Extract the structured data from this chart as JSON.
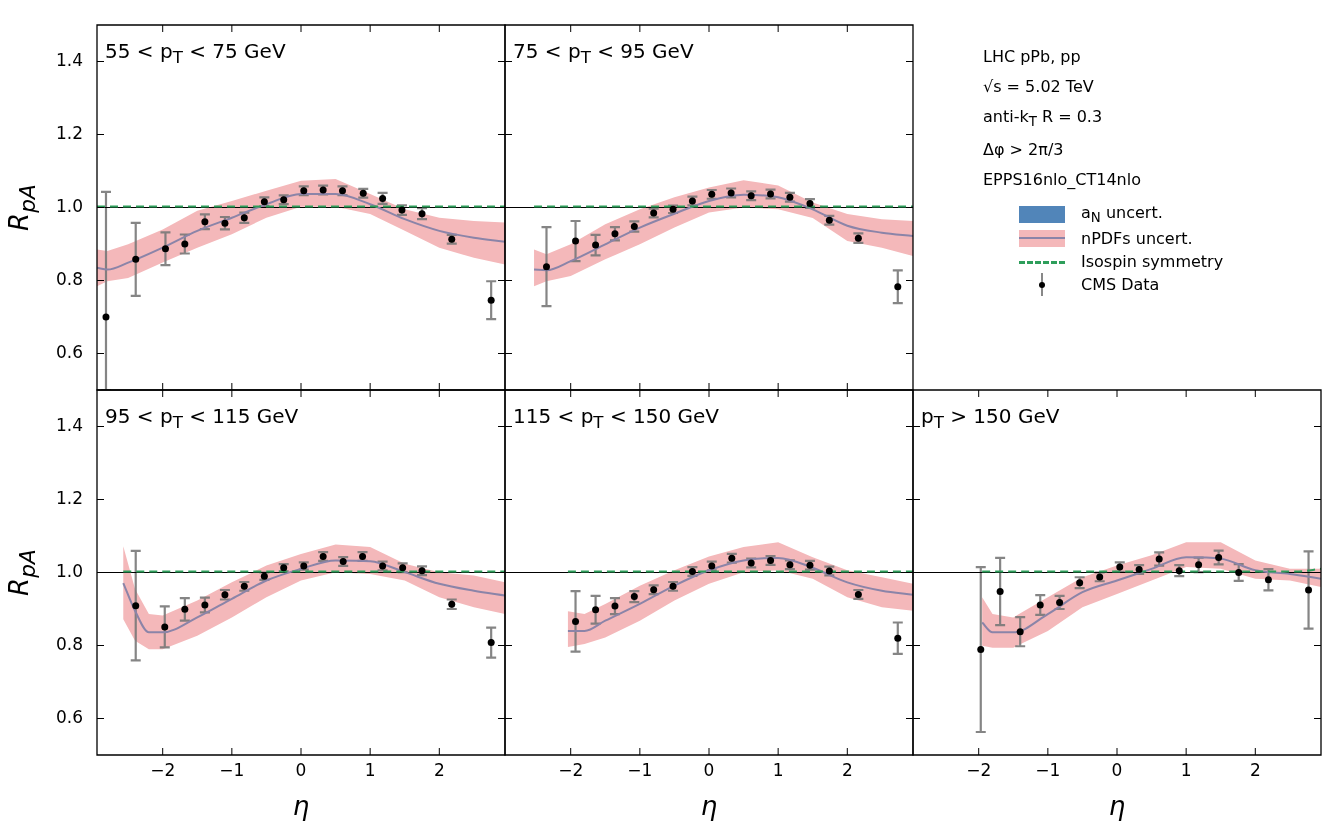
{
  "chart_data": [
    {
      "type": "line",
      "title": "55 < p$_{T}$ < 75 GeV",
      "ylabel": "R$_{pA}$",
      "xlim": [
        -2.95,
        2.95
      ],
      "ylim": [
        0.5,
        1.5
      ],
      "xticks": [
        -2,
        -1,
        0,
        1,
        2
      ],
      "yticks": [
        0.6,
        0.8,
        {
          "value": 1,
          "label": "1.0"
        },
        1.2,
        1.4
      ],
      "tick_labels": "y",
      "ref_lines": [
        {
          "axis": "y",
          "value": 1,
          "color": "#000000"
        }
      ],
      "series": [
        {
          "type": "line",
          "color": "#8b84a8",
          "x": [
            -2.95,
            -2.8,
            -2.5,
            -2,
            -1.5,
            -1,
            -0.5,
            0,
            0.5,
            1,
            1.5,
            2,
            2.5,
            2.95
          ],
          "values": [
            0.835,
            0.83,
            0.849,
            0.89,
            0.936,
            0.972,
            1.009,
            1.037,
            1.037,
            1.009,
            0.968,
            0.936,
            0.917,
            0.906
          ],
          "lower": [
            0.784,
            0.798,
            0.807,
            0.849,
            0.89,
            0.927,
            0.972,
            1.002,
            1.002,
            0.982,
            0.936,
            0.89,
            0.862,
            0.844
          ],
          "upper": [
            0.885,
            0.881,
            0.899,
            0.94,
            0.991,
            1.018,
            1.046,
            1.073,
            1.078,
            1.037,
            0.995,
            0.972,
            0.963,
            0.959
          ]
        },
        {
          "type": "line",
          "color": "#2e9e5b",
          "line_style": "dashed",
          "x": [
            -2.95,
            2.95
          ],
          "values": [
            1.003,
            1.003
          ]
        },
        {
          "type": "scatter",
          "color": "#000000",
          "marker": "circle",
          "x": [
            -2.82,
            -2.39,
            -1.96,
            -1.68,
            -1.39,
            -1.1,
            -0.82,
            -0.53,
            -0.25,
            0.04,
            0.32,
            0.6,
            0.9,
            1.18,
            1.46,
            1.75,
            2.18,
            2.75
          ],
          "values": [
            0.7,
            0.858,
            0.887,
            0.9,
            0.961,
            0.957,
            0.972,
            1.016,
            1.021,
            1.046,
            1.048,
            1.046,
            1.039,
            1.025,
            0.993,
            0.983,
            0.913,
            0.746
          ],
          "errors": [
            [
              0.5,
              1.043
            ],
            0.1,
            0.045,
            0.026,
            0.02,
            0.017,
            0.014,
            0.012,
            0.012,
            0.012,
            0.012,
            0.012,
            0.012,
            0.015,
            0.013,
            0.015,
            0.012,
            0.052
          ]
        }
      ]
    },
    {
      "type": "line",
      "title": "75 < p$_{T}$ < 95 GeV",
      "xlim": [
        -2.95,
        2.95
      ],
      "ylim": [
        0.5,
        1.5
      ],
      "xticks": [
        -2,
        -1,
        0,
        1,
        2
      ],
      "yticks": [
        0.6,
        0.8,
        1,
        1.2,
        1.4
      ],
      "tick_labels": false,
      "ref_lines": [
        {
          "axis": "y",
          "value": 1,
          "color": "#000000"
        }
      ],
      "legend": "right",
      "annotations": [
        "LHC  pPb, pp",
        "√s = 5.02 TeV",
        "anti-k$_{T}$ R = 0.3",
        "Δφ > 2π/3",
        "EPPS16nlo_CT14nlo"
      ],
      "series": [
        {
          "name": "a$_{N}$ uncert.",
          "type": "area",
          "color": "#5185b9"
        },
        {
          "name": "nPDFs uncert.",
          "type": "line",
          "color": "#8b84a8",
          "x": [
            -2.53,
            -2.35,
            -2,
            -1.5,
            -1,
            -0.5,
            0,
            0.5,
            1,
            1.5,
            2,
            2.5,
            2.95
          ],
          "values": [
            0.83,
            0.828,
            0.853,
            0.899,
            0.945,
            0.983,
            1.018,
            1.035,
            1.028,
            0.995,
            0.95,
            0.931,
            0.922
          ],
          "lower": [
            0.784,
            0.798,
            0.812,
            0.858,
            0.899,
            0.945,
            0.986,
            1.0,
            0.995,
            0.971,
            0.908,
            0.89,
            0.867
          ],
          "upper": [
            0.885,
            0.872,
            0.899,
            0.954,
            0.995,
            1.028,
            1.055,
            1.075,
            1.06,
            1.014,
            0.982,
            0.968,
            0.963
          ]
        },
        {
          "name": "Isospin symmetry",
          "type": "line",
          "color": "#2e9e5b",
          "line_style": "dashed",
          "x": [
            -2.53,
            2.95
          ],
          "values": [
            1.003,
            1.003
          ]
        },
        {
          "name": "CMS Data",
          "type": "scatter",
          "color": "#000000",
          "marker": "circle",
          "x": [
            -2.35,
            -1.93,
            -1.64,
            -1.36,
            -1.08,
            -0.8,
            -0.52,
            -0.24,
            0.04,
            0.32,
            0.61,
            0.89,
            1.17,
            1.46,
            1.74,
            2.16,
            2.73
          ],
          "values": [
            0.838,
            0.908,
            0.897,
            0.928,
            0.948,
            0.985,
            0.995,
            1.018,
            1.036,
            1.04,
            1.032,
            1.037,
            1.028,
            1.011,
            0.965,
            0.916,
            0.783
          ],
          "errors": [
            0.108,
            0.055,
            0.028,
            0.018,
            0.014,
            0.012,
            0.01,
            0.012,
            0.012,
            0.012,
            0.012,
            0.012,
            0.012,
            0.012,
            0.012,
            0.013,
            0.045
          ]
        }
      ]
    },
    {
      "type": "line",
      "title": "95 < p$_{T}$ < 115 GeV",
      "xlabel": "η",
      "ylabel": "R$_{pA}$",
      "xlim": [
        -2.95,
        2.95
      ],
      "ylim": [
        0.5,
        1.5
      ],
      "xticks": [
        -2,
        -1,
        0,
        1,
        2
      ],
      "yticks": [
        0.6,
        0.8,
        {
          "value": 1,
          "label": "1.0"
        },
        1.2,
        1.4
      ],
      "ref_lines": [
        {
          "axis": "y",
          "value": 1,
          "color": "#000000"
        }
      ],
      "series": [
        {
          "type": "line",
          "color": "#8b84a8",
          "x": [
            -2.57,
            -2.4,
            -2.2,
            -2,
            -1.5,
            -1,
            -0.5,
            0,
            0.5,
            1,
            1.5,
            2,
            2.5,
            2.95
          ],
          "values": [
            0.971,
            0.895,
            0.836,
            0.836,
            0.877,
            0.928,
            0.978,
            1.01,
            1.033,
            1.031,
            1.001,
            0.969,
            0.95,
            0.937
          ],
          "lower": [
            0.872,
            0.813,
            0.79,
            0.79,
            0.827,
            0.877,
            0.932,
            0.978,
            1.001,
            0.996,
            0.978,
            0.932,
            0.905,
            0.886
          ],
          "upper": [
            1.072,
            0.955,
            0.886,
            0.882,
            0.923,
            0.973,
            1.019,
            1.051,
            1.077,
            1.07,
            1.024,
            1.001,
            0.992,
            0.973
          ]
        },
        {
          "type": "line",
          "color": "#2e9e5b",
          "line_style": "dashed",
          "x": [
            -2.57,
            2.95
          ],
          "values": [
            1.003,
            1.003
          ]
        },
        {
          "type": "scatter",
          "color": "#000000",
          "marker": "circle",
          "x": [
            -2.39,
            -1.97,
            -1.68,
            -1.39,
            -1.1,
            -0.82,
            -0.53,
            -0.25,
            0.04,
            0.32,
            0.61,
            0.89,
            1.18,
            1.47,
            1.75,
            2.18,
            2.75
          ],
          "values": [
            0.909,
            0.851,
            0.899,
            0.911,
            0.939,
            0.962,
            0.99,
            1.013,
            1.018,
            1.044,
            1.03,
            1.044,
            1.018,
            1.013,
            1.005,
            0.913,
            0.808
          ],
          "errors": [
            0.15,
            0.056,
            0.031,
            0.02,
            0.013,
            0.012,
            0.01,
            0.01,
            0.01,
            0.012,
            0.012,
            0.012,
            0.012,
            0.012,
            0.012,
            0.013,
            0.041
          ]
        }
      ]
    },
    {
      "type": "line",
      "title": "115 < p$_{T}$ < 150 GeV",
      "xlabel": "η",
      "xlim": [
        -2.95,
        2.95
      ],
      "ylim": [
        0.5,
        1.5
      ],
      "xticks": [
        -2,
        -1,
        0,
        1,
        2
      ],
      "yticks": [
        0.6,
        0.8,
        1,
        1.2,
        1.4
      ],
      "tick_labels": "x",
      "ref_lines": [
        {
          "axis": "y",
          "value": 1,
          "color": "#000000"
        }
      ],
      "series": [
        {
          "type": "line",
          "color": "#8b84a8",
          "x": [
            -2.04,
            -1.8,
            -1.5,
            -1,
            -0.5,
            0,
            0.5,
            1,
            1.5,
            2,
            2.5,
            2.95
          ],
          "values": [
            0.84,
            0.84,
            0.868,
            0.914,
            0.964,
            1.006,
            1.033,
            1.04,
            1.013,
            0.973,
            0.95,
            0.939
          ],
          "lower": [
            0.796,
            0.804,
            0.822,
            0.868,
            0.923,
            0.969,
            1.001,
            1.006,
            0.983,
            0.932,
            0.905,
            0.895
          ],
          "upper": [
            0.894,
            0.886,
            0.914,
            0.964,
            1.006,
            1.044,
            1.07,
            1.083,
            1.042,
            1.006,
            0.987,
            0.969
          ]
        },
        {
          "type": "line",
          "color": "#2e9e5b",
          "line_style": "dashed",
          "x": [
            -2.04,
            2.95
          ],
          "values": [
            1.003,
            1.003
          ]
        },
        {
          "type": "scatter",
          "color": "#000000",
          "marker": "circle",
          "x": [
            -1.93,
            -1.64,
            -1.36,
            -1.08,
            -0.8,
            -0.52,
            -0.24,
            0.04,
            0.33,
            0.61,
            0.89,
            1.17,
            1.46,
            1.74,
            2.16,
            2.73
          ],
          "values": [
            0.866,
            0.898,
            0.908,
            0.934,
            0.953,
            0.962,
            1.003,
            1.018,
            1.039,
            1.026,
            1.033,
            1.021,
            1.02,
            1.004,
            0.94,
            0.82
          ],
          "errors": [
            0.083,
            0.038,
            0.022,
            0.015,
            0.012,
            0.012,
            0.012,
            0.012,
            0.012,
            0.012,
            0.012,
            0.012,
            0.012,
            0.012,
            0.012,
            0.043
          ]
        }
      ]
    },
    {
      "type": "line",
      "title": "p$_{T}$ > 150 GeV",
      "xlabel": "η",
      "xlim": [
        -2.95,
        2.95
      ],
      "ylim": [
        0.5,
        1.5
      ],
      "xticks": [
        -2,
        -1,
        0,
        1,
        2
      ],
      "yticks": [
        0.6,
        0.8,
        1,
        1.2,
        1.4
      ],
      "tick_labels": "x",
      "ref_lines": [
        {
          "axis": "y",
          "value": 1,
          "color": "#000000"
        }
      ],
      "series": [
        {
          "type": "line",
          "color": "#8b84a8",
          "x": [
            -1.95,
            -1.8,
            -1.5,
            -1,
            -0.5,
            0,
            0.5,
            1,
            1.5,
            2,
            2.5,
            2.95
          ],
          "values": [
            0.863,
            0.836,
            0.836,
            0.886,
            0.946,
            0.978,
            1.01,
            1.042,
            1.038,
            1.006,
            0.996,
            0.983
          ],
          "lower": [
            0.799,
            0.794,
            0.794,
            0.84,
            0.905,
            0.941,
            0.978,
            1.015,
            1.01,
            0.983,
            0.978,
            0.96
          ],
          "upper": [
            0.932,
            0.886,
            0.877,
            0.932,
            0.987,
            1.019,
            1.047,
            1.083,
            1.083,
            1.033,
            1.01,
            1.01
          ]
        },
        {
          "type": "line",
          "color": "#2e9e5b",
          "line_style": "dashed",
          "x": [
            -1.95,
            2.6,
            2.95
          ],
          "values": [
            1.003,
            1.003,
            1.01
          ]
        },
        {
          "type": "scatter",
          "color": "#000000",
          "marker": "circle",
          "x": [
            -1.97,
            -1.69,
            -1.4,
            -1.11,
            -0.83,
            -0.54,
            -0.25,
            0.04,
            0.32,
            0.61,
            0.9,
            1.18,
            1.47,
            1.76,
            2.19,
            2.77
          ],
          "values": [
            0.789,
            0.948,
            0.838,
            0.911,
            0.918,
            0.972,
            0.988,
            1.015,
            1.008,
            1.037,
            1.005,
            1.021,
            1.041,
            1.0,
            0.98,
            0.952
          ],
          "errors": [
            0.226,
            0.092,
            0.04,
            0.027,
            0.018,
            0.015,
            0.012,
            0.013,
            0.012,
            0.018,
            0.015,
            0.02,
            0.019,
            0.023,
            0.029,
            0.106
          ]
        }
      ]
    }
  ]
}
